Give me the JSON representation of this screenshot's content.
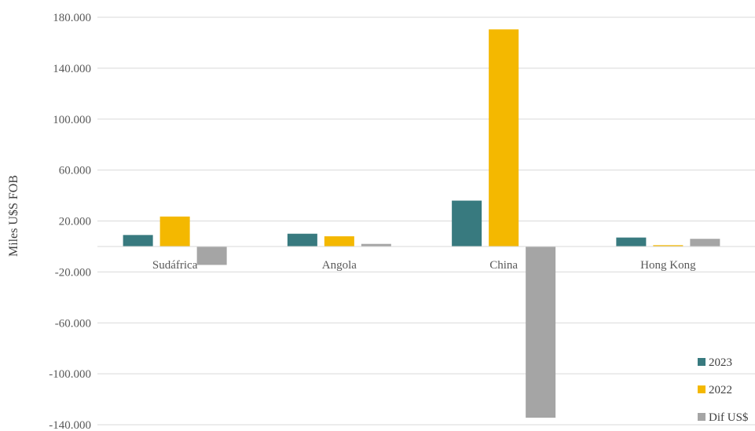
{
  "chart_data": {
    "type": "bar",
    "title": "",
    "xlabel": "",
    "ylabel": "Miles  U$S FOB",
    "ylim": [
      -140000,
      180000
    ],
    "yticks": [
      180000,
      140000,
      100000,
      60000,
      20000,
      -20000,
      -60000,
      -100000,
      -140000
    ],
    "ytick_labels": [
      "180.000",
      "140.000",
      "100.000",
      "60.000",
      "20.000",
      "-20.000",
      "-60.000",
      "-100.000",
      "-140.000"
    ],
    "grid": true,
    "legend_position": "bottom-right",
    "categories": [
      "Sudáfrica",
      "Angola",
      "China",
      "Hong Kong"
    ],
    "series": [
      {
        "name": "2023",
        "color": "#387a7f",
        "values": [
          9000,
          10000,
          36000,
          7000
        ]
      },
      {
        "name": "2022",
        "color": "#f4b800",
        "values": [
          23500,
          8000,
          170500,
          1000
        ]
      },
      {
        "name": "Dif US$",
        "color": "#a5a5a5",
        "values": [
          -14500,
          2000,
          -134500,
          6000
        ]
      }
    ]
  }
}
